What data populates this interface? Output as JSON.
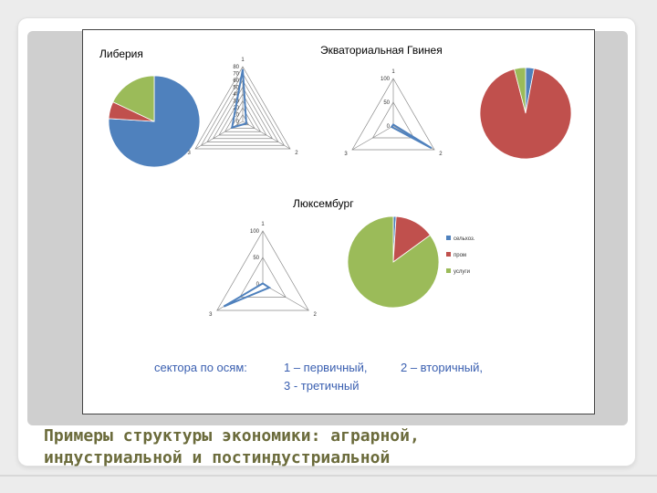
{
  "slide": {
    "title_line1": "Примеры структуры экономики: аграрной,",
    "title_line2": "индустриальной и постиндустриальной",
    "axes_note": {
      "label": "сектора по осям:",
      "item1": "1 – первичный,",
      "item2": "2 – вторичный,",
      "item3": "3 - третичный"
    }
  },
  "colors": {
    "sector1": "#4f81bd",
    "sector2": "#c0504d",
    "sector3": "#9bbb59",
    "title_text": "#6b6b3b",
    "note_text": "#3a5fb0"
  },
  "chart_data": [
    {
      "type": "pie",
      "title": "Либерия",
      "labels": [
        "сельхоз.",
        "пром",
        "услуги"
      ],
      "values": [
        76,
        6,
        18
      ]
    },
    {
      "type": "radar",
      "axes": [
        "1",
        "2",
        "3"
      ],
      "ticks": [
        "0",
        "10",
        "20",
        "30",
        "40",
        "50",
        "60",
        "70",
        "80"
      ],
      "rmax": 80,
      "values": [
        76,
        6,
        18
      ]
    },
    {
      "type": "radar",
      "title": "Экваториальная Гвинея",
      "axes": [
        "1",
        "2",
        "3"
      ],
      "ticks": [
        "0",
        "50",
        "100"
      ],
      "rmax": 100,
      "values": [
        3,
        93,
        4
      ]
    },
    {
      "type": "pie",
      "labels": [
        "сельхоз.",
        "пром",
        "услуги"
      ],
      "values": [
        3,
        93,
        4
      ]
    },
    {
      "type": "radar",
      "title": "Люксембург",
      "axes": [
        "1",
        "2",
        "3"
      ],
      "ticks": [
        "0",
        "50",
        "100"
      ],
      "rmax": 100,
      "values": [
        1,
        14,
        85
      ]
    },
    {
      "type": "pie",
      "labels": [
        "сельхоз.",
        "пром",
        "услуги"
      ],
      "values": [
        1,
        14,
        85
      ],
      "legend": [
        "сельхоз.",
        "пром",
        "услуги"
      ],
      "legend_position": "right"
    }
  ]
}
